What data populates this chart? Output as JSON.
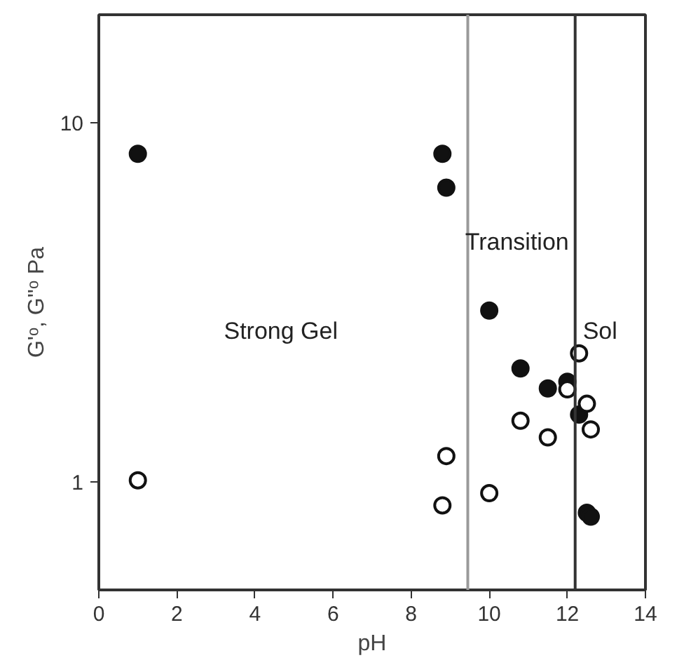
{
  "chart_data": {
    "type": "scatter",
    "xlabel": "pH",
    "ylabel": "G'ᵒ, G''ᵒ Pa",
    "log": "y",
    "xlim": [
      0,
      14
    ],
    "xticks": [
      0,
      2,
      4,
      6,
      8,
      10,
      12,
      14
    ],
    "ylim": [
      0.5,
      20
    ],
    "yticks": [
      1,
      10
    ],
    "grid": false,
    "marker": "circle",
    "series": [
      {
        "color": "#111111",
        "x": [
          1.0,
          8.8,
          8.9,
          10.0,
          10.8,
          11.5,
          12.0,
          12.3,
          12.5,
          12.6
        ],
        "values": [
          8.2,
          8.2,
          6.6,
          3.0,
          2.07,
          1.82,
          1.9,
          1.54,
          0.82,
          0.8
        ]
      },
      {
        "color": "#ffffff",
        "x": [
          1.0,
          8.8,
          8.9,
          10.0,
          10.8,
          11.5,
          12.0,
          12.3,
          12.5,
          12.6
        ],
        "values": [
          1.01,
          0.86,
          1.18,
          0.93,
          1.48,
          1.33,
          1.81,
          2.28,
          1.65,
          1.4
        ]
      }
    ],
    "ref_lines": [
      {
        "axis": "x",
        "value": 9.45,
        "color": "#9a9a9a"
      },
      {
        "axis": "x",
        "value": 12.2,
        "color": "#333333"
      }
    ],
    "annotations": [
      "Strong Gel",
      "Transition",
      "Sol"
    ]
  }
}
